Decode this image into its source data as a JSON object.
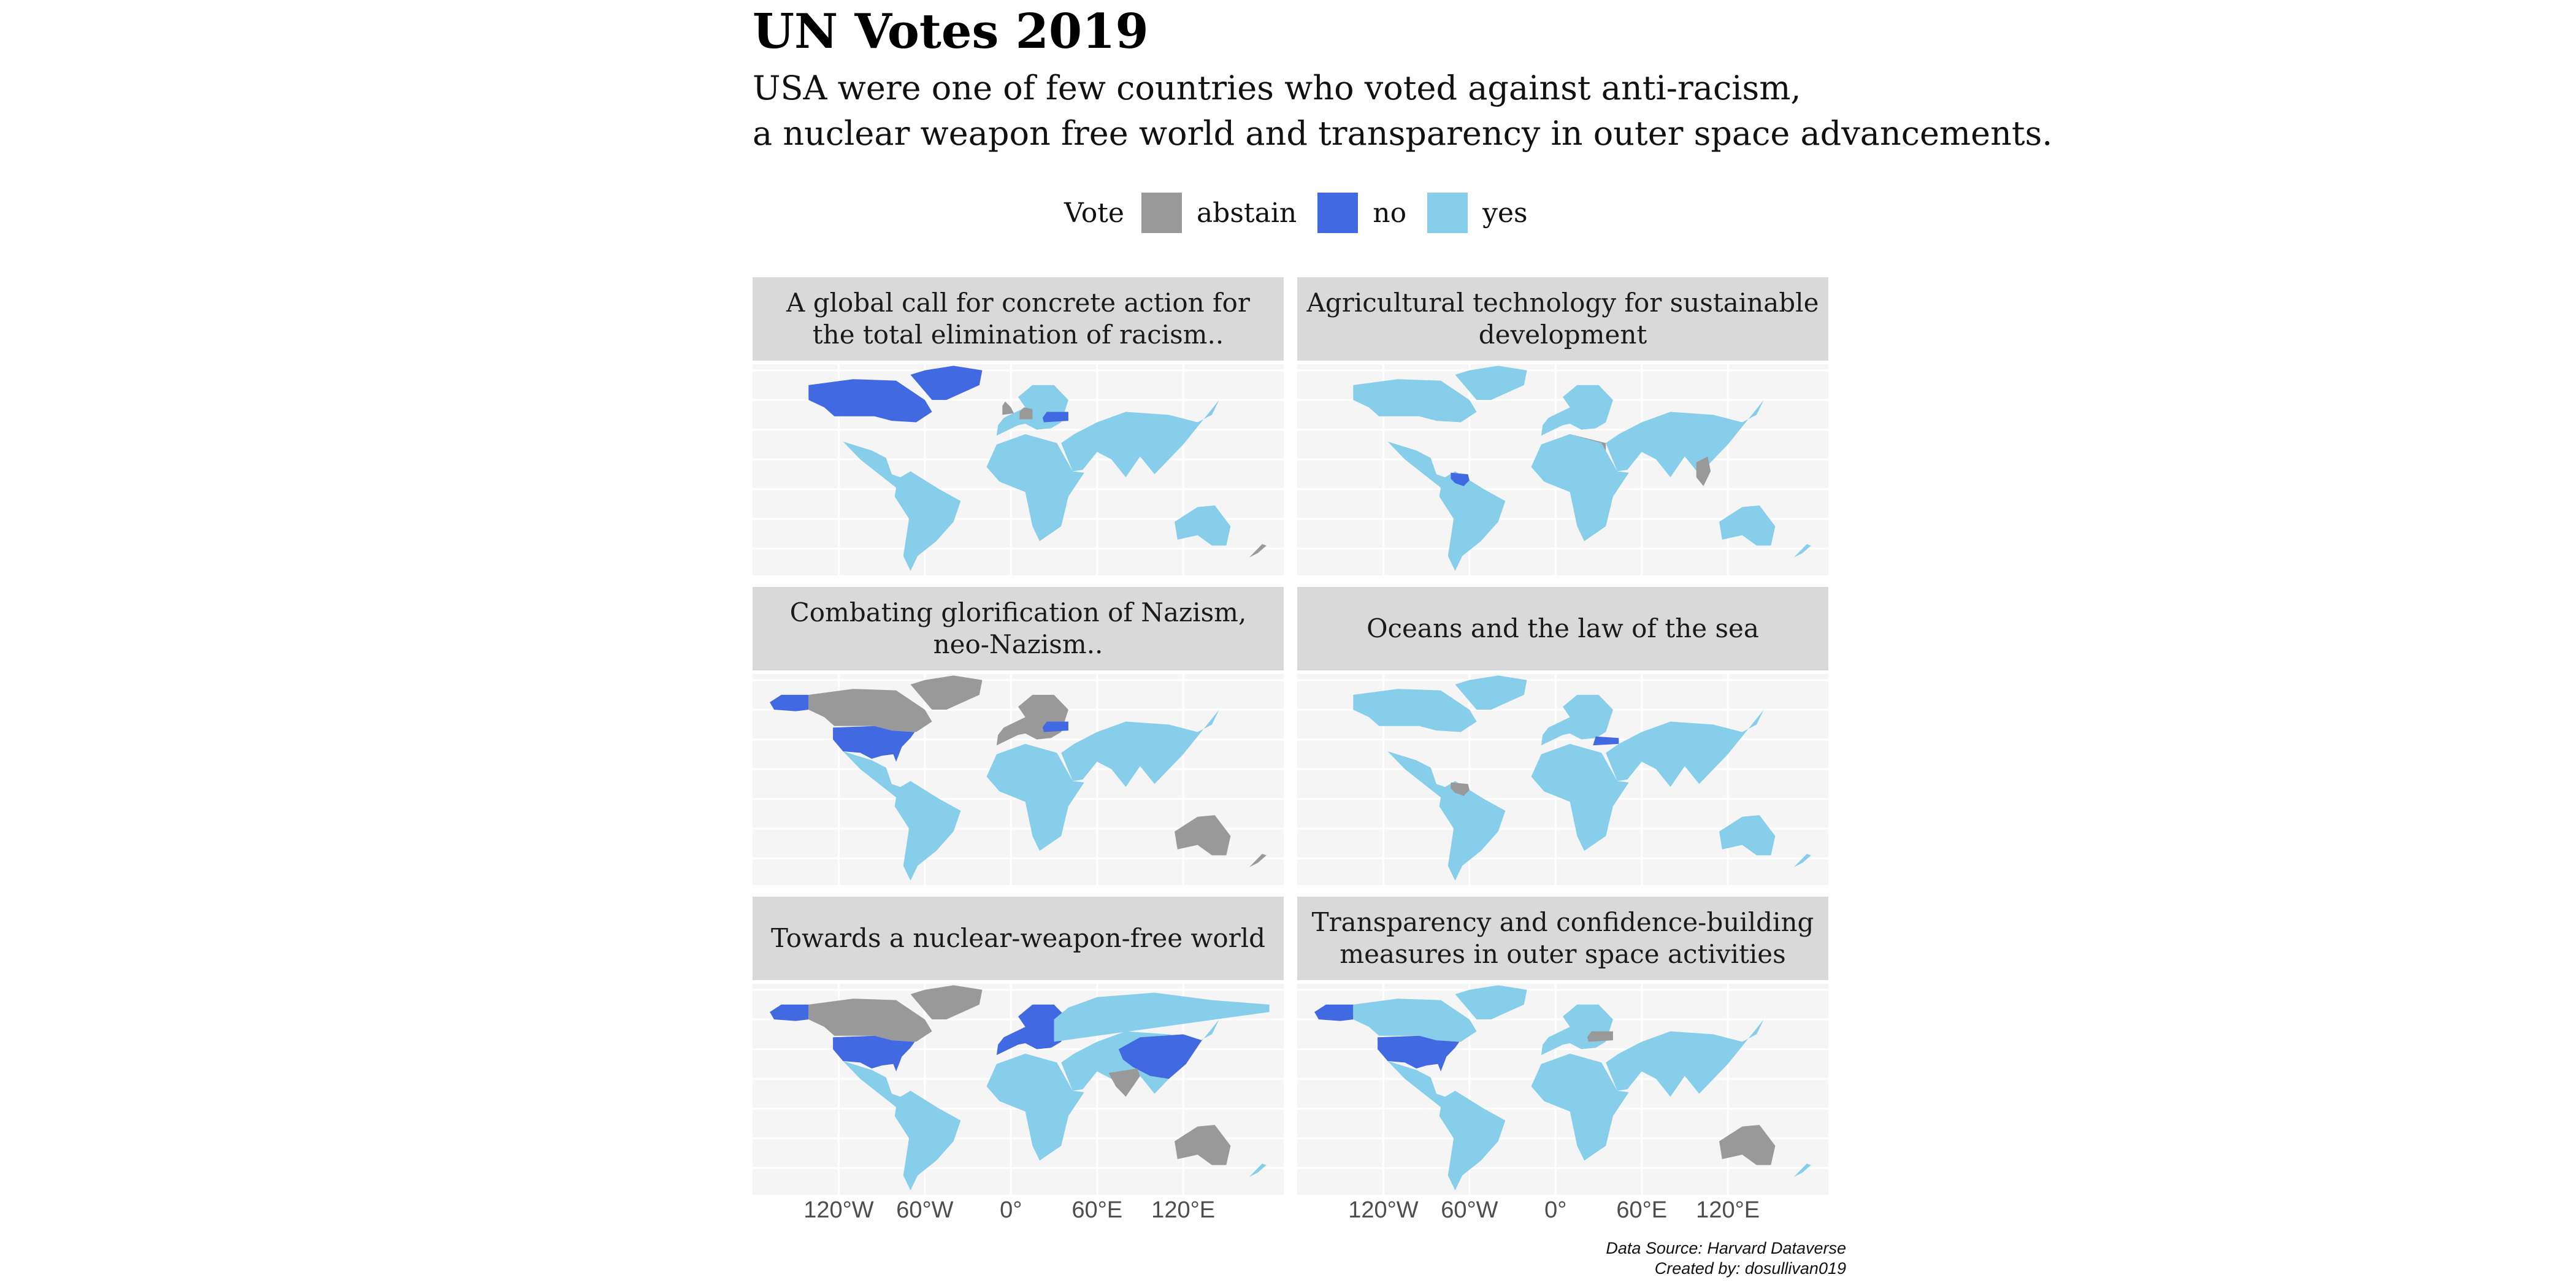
{
  "chart_data": {
    "type": "choropleth map (small multiples)",
    "title": "UN Votes 2019",
    "subtitle_lines": [
      "USA were one of few countries who voted against anti-racism,",
      "a nuclear weapon free world and transparency in outer space advancements."
    ],
    "legend": {
      "title": "Vote",
      "position": "top",
      "items": [
        {
          "label": "abstain",
          "color": "#999999"
        },
        {
          "label": "no",
          "color": "#4169e1"
        },
        {
          "label": "yes",
          "color": "#87ceeb"
        }
      ]
    },
    "x_ticks": [
      "120°W",
      "60°W",
      "0°",
      "60°E",
      "120°E"
    ],
    "x_tick_values": [
      -120,
      -60,
      0,
      60,
      120
    ],
    "xlim": [
      -180,
      190
    ],
    "ylim": [
      -58,
      84
    ],
    "grid": true,
    "panels": [
      {
        "title_lines": [
          "A global call for concrete action for",
          "the total elimination of racism.."
        ],
        "votes": {
          "north_america": "no",
          "greenland": "no",
          "latin_america": "yes",
          "europe": "yes",
          "uk": "abstain",
          "germany": "abstain",
          "ukraine": "no",
          "africa": "yes",
          "asia": "yes",
          "australia": "yes",
          "new_zealand": "abstain"
        }
      },
      {
        "title_lines": [
          "Agricultural technology for sustainable",
          "development"
        ],
        "votes": {
          "north_america": "yes",
          "greenland": "yes",
          "latin_america": "yes",
          "venezuela": "no",
          "europe": "yes",
          "north_africa": "abstain",
          "africa": "yes",
          "asia": "yes",
          "southeast_asia": "abstain",
          "australia": "yes",
          "new_zealand": "yes"
        }
      },
      {
        "title_lines": [
          "Combating glorification of Nazism,",
          "neo-Nazism.."
        ],
        "votes": {
          "north_america": "abstain",
          "alaska": "no",
          "usa": "no",
          "greenland": "abstain",
          "latin_america": "yes",
          "europe": "abstain",
          "ukraine": "no",
          "africa": "yes",
          "asia": "yes",
          "australia": "abstain",
          "new_zealand": "abstain"
        }
      },
      {
        "title_lines": [
          "Oceans and the law of the sea"
        ],
        "votes": {
          "north_america": "yes",
          "greenland": "yes",
          "latin_america": "yes",
          "venezuela": "abstain",
          "europe": "yes",
          "turkey": "no",
          "africa": "yes",
          "asia": "yes",
          "australia": "yes",
          "new_zealand": "yes"
        }
      },
      {
        "title_lines": [
          "Towards a nuclear-weapon-free world"
        ],
        "votes": {
          "north_america": "abstain",
          "alaska": "no",
          "usa": "no",
          "greenland": "abstain",
          "latin_america": "yes",
          "europe": "no",
          "russia": "yes",
          "africa": "yes",
          "asia": "yes",
          "china": "no",
          "india": "abstain",
          "australia": "abstain",
          "new_zealand": "yes"
        }
      },
      {
        "title_lines": [
          "Transparency and confidence-building",
          "measures in outer space activities"
        ],
        "votes": {
          "north_america": "yes",
          "alaska": "no",
          "usa": "no",
          "greenland": "yes",
          "latin_america": "yes",
          "europe": "yes",
          "ukraine": "abstain",
          "africa": "yes",
          "asia": "yes",
          "australia": "abstain",
          "new_zealand": "yes"
        }
      }
    ]
  },
  "caption": {
    "line1": "Data Source: Harvard Dataverse",
    "line2": "Created by: dosullivan019"
  }
}
